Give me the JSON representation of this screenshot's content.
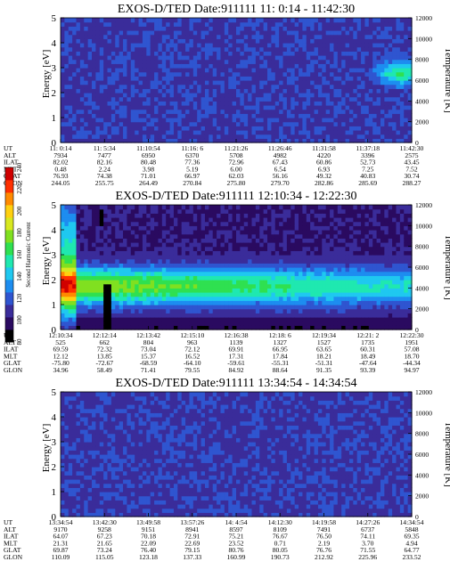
{
  "colorbar": {
    "label": "Second Harmonic Current",
    "ticks": [
      "80",
      "100",
      "120",
      "140",
      "160",
      "180",
      "200",
      "220",
      "240"
    ],
    "min": 80,
    "max": 240,
    "colors": [
      "#000000",
      "#2a0a60",
      "#3a2c9a",
      "#2f55d0",
      "#1d8df0",
      "#1fc8f0",
      "#1fe8b0",
      "#2fe050",
      "#80e020",
      "#d8e820",
      "#ffd010",
      "#ff8a00",
      "#ff3000",
      "#d00000"
    ]
  },
  "row_labels": [
    "UT",
    "ALT",
    "ILAT",
    "MLT",
    "GLAT",
    "GLON"
  ],
  "chart_data": [
    {
      "type": "heatmap",
      "title": "EXOS-D/TED   Date:911111   11: 0:14 - 11:42:30",
      "ylabel": "Energy [eV]",
      "y2label": "Temperature [K]",
      "ylim": [
        0,
        5
      ],
      "y2lim": [
        0,
        12000
      ],
      "yticks": [
        "0",
        "1",
        "2",
        "3",
        "4",
        "5"
      ],
      "y2ticks": [
        "0",
        "2000",
        "4000",
        "6000",
        "8000",
        "10000",
        "12000"
      ],
      "features": "mostly uniform low level (~110); elevated patch near end at 2-3.5 eV",
      "x_columns": {
        "UT": [
          "11: 0:14",
          "11: 5:34",
          "11:10:54",
          "11:16: 6",
          "11:21:26",
          "11:26:46",
          "11:31:58",
          "11:37:18",
          "11:42:30"
        ],
        "ALT": [
          "7934",
          "7477",
          "6950",
          "6370",
          "5708",
          "4982",
          "4220",
          "3396",
          "2575"
        ],
        "ILAT": [
          "82.02",
          "82.16",
          "80.48",
          "77.36",
          "72.96",
          "67.43",
          "60.86",
          "52.73",
          "43.45"
        ],
        "MLT": [
          "0.48",
          "2.24",
          "3.98",
          "5.19",
          "6.00",
          "6.54",
          "6.93",
          "7.25",
          "7.52"
        ],
        "GLAT": [
          "76.93",
          "74.38",
          "71.01",
          "66.97",
          "62.03",
          "56.16",
          "49.32",
          "40.83",
          "30.74"
        ],
        "GLON": [
          "244.05",
          "255.75",
          "264.49",
          "270.84",
          "275.80",
          "279.70",
          "282.86",
          "285.69",
          "288.27"
        ]
      }
    },
    {
      "type": "heatmap",
      "title": "EXOS-D/TED   Date:911111   12:10:34 - 12:22:30",
      "ylabel": "Energy [eV]",
      "y2label": "Temperature [K]",
      "ylim": [
        0,
        5
      ],
      "y2lim": [
        0,
        12000
      ],
      "yticks": [
        "0",
        "1",
        "2",
        "3",
        "4",
        "5"
      ],
      "y2ticks": [
        "0",
        "2000",
        "4000",
        "6000",
        "8000",
        "10000",
        "12000"
      ],
      "features": "broad enhanced band centred near 1.8 eV; dark gaps near 12:12",
      "x_columns": {
        "UT": [
          "12:10:34",
          "12:12:14",
          "12:13:42",
          "12:15:10",
          "12:16:38",
          "12:18: 6",
          "12:19:34",
          "12:21: 2",
          "12:22:30"
        ],
        "ALT": [
          "525",
          "662",
          "804",
          "963",
          "1139",
          "1327",
          "1527",
          "1735",
          "1951"
        ],
        "ILAT": [
          "69.59",
          "72.32",
          "73.04",
          "72.12",
          "69.91",
          "66.95",
          "63.65",
          "60.31",
          "57.08"
        ],
        "MLT": [
          "12.12",
          "13.85",
          "15.37",
          "16.52",
          "17.31",
          "17.84",
          "18.21",
          "18.49",
          "18.70"
        ],
        "GLAT": [
          "-75.80",
          "-72.67",
          "-68.59",
          "-64.10",
          "-59.61",
          "-55.31",
          "-51.31",
          "-47.64",
          "-44.34"
        ],
        "GLON": [
          "34.96",
          "58.49",
          "71.41",
          "79.55",
          "84.92",
          "88.64",
          "91.35",
          "93.39",
          "94.97"
        ]
      }
    },
    {
      "type": "heatmap",
      "title": "EXOS-D/TED   Date:911111   13:34:54 - 14:34:54",
      "ylabel": "Energy [eV]",
      "y2label": "Temperature [K]",
      "ylim": [
        0,
        5
      ],
      "y2lim": [
        0,
        12000
      ],
      "yticks": [
        "0",
        "1",
        "2",
        "3",
        "4",
        "5"
      ],
      "y2ticks": [
        "0",
        "2000",
        "4000",
        "6000",
        "8000",
        "10000",
        "12000"
      ],
      "features": "uniform low level throughout",
      "x_columns": {
        "UT": [
          "13:34:54",
          "13:42:30",
          "13:49:58",
          "13:57:26",
          "14: 4:54",
          "14:12:30",
          "14:19:58",
          "14:27:26",
          "14:34:54"
        ],
        "ALT": [
          "9170",
          "9258",
          "9151",
          "8941",
          "8597",
          "8109",
          "7491",
          "6737",
          "5848"
        ],
        "ILAT": [
          "64.07",
          "67.23",
          "70.18",
          "72.91",
          "75.21",
          "76.67",
          "76.50",
          "74.11",
          "69.35"
        ],
        "MLT": [
          "21.31",
          "21.65",
          "22.09",
          "22.69",
          "23.52",
          "0.71",
          "2.19",
          "3.70",
          "4.94"
        ],
        "GLAT": [
          "69.87",
          "73.24",
          "76.40",
          "79.15",
          "80.76",
          "80.05",
          "76.76",
          "71.55",
          "64.77"
        ],
        "GLON": [
          "110.09",
          "115.05",
          "123.18",
          "137.33",
          "160.99",
          "190.73",
          "212.92",
          "225.96",
          "233.52"
        ]
      }
    }
  ]
}
